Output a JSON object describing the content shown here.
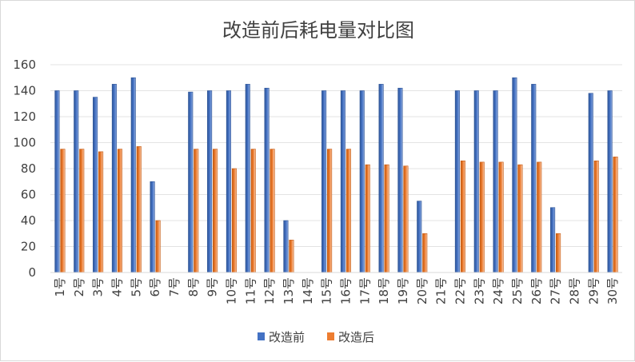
{
  "chart_data": {
    "type": "bar",
    "title": "改造前后耗电量对比图",
    "categories": [
      "1号",
      "2号",
      "3号",
      "4号",
      "5号",
      "6号",
      "7号",
      "8号",
      "9号",
      "10号",
      "11号",
      "12号",
      "13号",
      "14号",
      "15号",
      "16号",
      "17号",
      "18号",
      "19号",
      "20号",
      "21号",
      "22号",
      "23号",
      "24号",
      "25号",
      "26号",
      "27号",
      "28号",
      "29号",
      "30号"
    ],
    "series": [
      {
        "name": "改造前",
        "color": "#4472c4",
        "values": [
          140,
          140,
          135,
          145,
          150,
          70,
          null,
          139,
          140,
          140,
          145,
          142,
          40,
          null,
          140,
          140,
          140,
          145,
          142,
          55,
          null,
          140,
          140,
          140,
          150,
          145,
          50,
          null,
          138,
          140
        ]
      },
      {
        "name": "改造后",
        "color": "#ed7d31",
        "values": [
          95,
          95,
          93,
          95,
          97,
          40,
          null,
          95,
          95,
          80,
          95,
          95,
          25,
          null,
          95,
          95,
          83,
          83,
          82,
          30,
          null,
          86,
          85,
          85,
          83,
          85,
          30,
          null,
          86,
          89
        ]
      }
    ],
    "ylim": [
      0,
      160
    ],
    "yticks": [
      0,
      20,
      40,
      60,
      80,
      100,
      120,
      140,
      160
    ],
    "grid": true,
    "legend": "bottom"
  }
}
